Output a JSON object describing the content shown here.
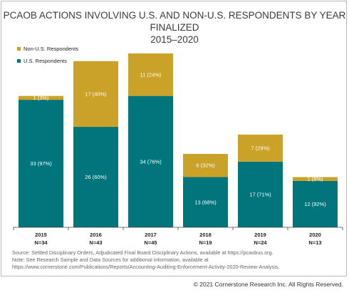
{
  "title": "PCAOB ACTIONS INVOLVING U.S. AND NON-U.S. RESPONDENTS BY YEAR FINALIZED",
  "title_line2": "2015–2020",
  "colors": {
    "us": "#00757c",
    "non_us": "#c9a227"
  },
  "chart_data": {
    "type": "bar",
    "stacked": true,
    "categories": [
      "2015",
      "2016",
      "2017",
      "2018",
      "2019",
      "2020"
    ],
    "category_sublabels": [
      "N=34",
      "N=43",
      "N=45",
      "N=19",
      "N=24",
      "N=13"
    ],
    "series": [
      {
        "name": "U.S. Respondents",
        "values": [
          33,
          26,
          34,
          13,
          17,
          12
        ],
        "labels": [
          "33 (97%)",
          "26 (60%)",
          "34 (76%)",
          "13 (68%)",
          "17 (71%)",
          "12 (92%)"
        ]
      },
      {
        "name": "Non-U.S. Respondents",
        "values": [
          1,
          17,
          11,
          6,
          7,
          1
        ],
        "labels": [
          "1 (3%)",
          "17 (40%)",
          "11 (24%)",
          "6 (32%)",
          "7 (29%)",
          "1 (8%)"
        ]
      }
    ],
    "ylim": [
      0,
      50
    ],
    "legend": "top-left",
    "grid": false
  },
  "legend": {
    "non_us": "Non-U.S. Respondents",
    "us": "U.S. Respondents"
  },
  "notes": [
    "Source: Settled Disciplinary Orders, Adjudicated Final Board Disciplinary Actions, available at https://pcaobus.org.",
    "Note: See Research Sample and Data Sources for additional information, available at",
    "https://www.cornerstone.com/Publications/Reports/Accounting-Auditing-Enforcement-Activity-2020-Review-Analysis."
  ],
  "copyright": "© 2021 Cornerstone Research Inc. All Rights Reserved."
}
